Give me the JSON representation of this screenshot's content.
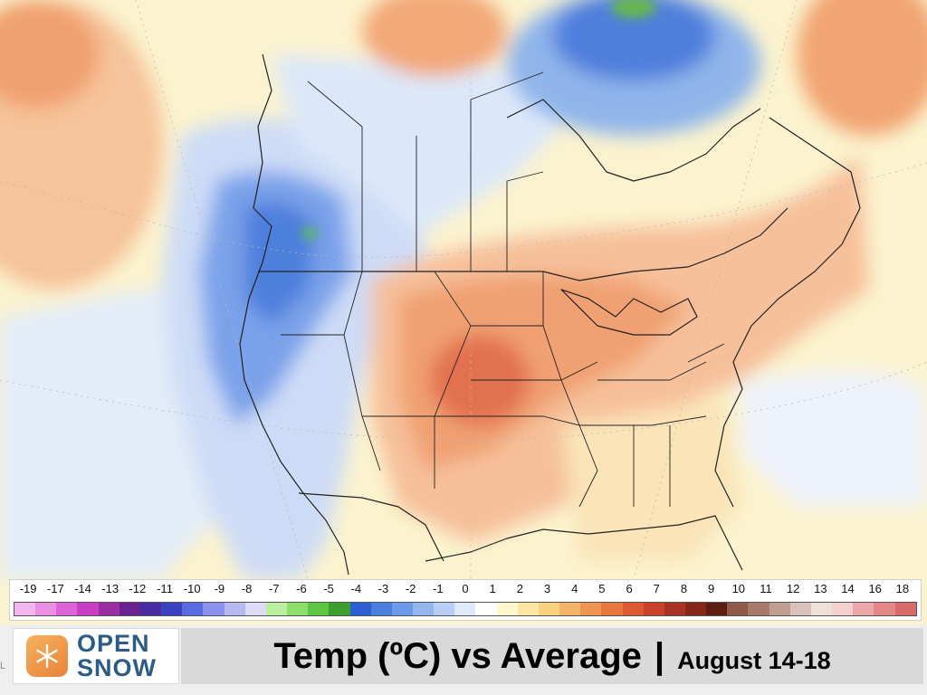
{
  "colors": {
    "background_warm": "#fbf3cf",
    "cool_light": "#dfeaf9",
    "cool_mid": "#8fb5ea",
    "cool_dark": "#3f6fd6",
    "warm_light": "#f8d7a8",
    "warm_mid": "#f2a572",
    "warm_dark": "#e4684a",
    "green_patch": "#67b84b",
    "boundary": "#222222",
    "brand_blue": "#2d5b86",
    "brand_orange": "#f0a04a"
  },
  "legend": {
    "labels": [
      "-19",
      "-17",
      "-14",
      "-13",
      "-12",
      "-11",
      "-10",
      "-9",
      "-8",
      "-7",
      "-6",
      "-5",
      "-4",
      "-3",
      "-2",
      "-1",
      "0",
      "1",
      "2",
      "3",
      "4",
      "5",
      "6",
      "7",
      "8",
      "9",
      "10",
      "11",
      "12",
      "13",
      "14",
      "16",
      "18"
    ],
    "colors": [
      "#f4b6ef",
      "#ea8fe4",
      "#dc63d8",
      "#c83fc6",
      "#9a2ea3",
      "#6b2190",
      "#4a2aa3",
      "#3a42c2",
      "#5a6ae0",
      "#8a92ec",
      "#b8b9f2",
      "#dcdcf8",
      "#b9ef9f",
      "#8ddf6c",
      "#5dc743",
      "#3c9f30",
      "#2d5fd3",
      "#4a7fe0",
      "#6d9ae8",
      "#93b6ee",
      "#b8cff3",
      "#dfe9fa",
      "#ffffff",
      "#fff8cc",
      "#fde6a2",
      "#f9d17f",
      "#f4b469",
      "#ee9555",
      "#e8773f",
      "#de5831",
      "#c9412a",
      "#a83223",
      "#842719",
      "#5e1d12",
      "#8f5a4a",
      "#a87a6c",
      "#c19e92",
      "#d9c2b9",
      "#eedfd8",
      "#f3cfcd",
      "#eca8a8",
      "#e28888",
      "#d96a6a"
    ]
  },
  "footer": {
    "logo_line1": "OPEN",
    "logo_line2": "SNOW",
    "title_main": "Temp (ºC) vs Average",
    "title_separator": "|",
    "title_date": "August 14-18",
    "left_fragment": "L"
  }
}
